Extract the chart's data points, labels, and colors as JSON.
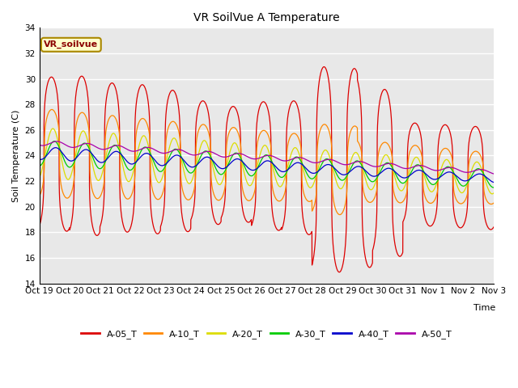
{
  "title": "VR SoilVue A Temperature",
  "xlabel": "Time",
  "ylabel": "Soil Temperature (C)",
  "ylim": [
    14,
    34
  ],
  "yticks": [
    14,
    16,
    18,
    20,
    22,
    24,
    26,
    28,
    30,
    32,
    34
  ],
  "bg_color": "#e8e8e8",
  "series_colors": {
    "A-05_T": "#dd0000",
    "A-10_T": "#ff8800",
    "A-20_T": "#dddd00",
    "A-30_T": "#00cc00",
    "A-40_T": "#0000cc",
    "A-50_T": "#aa00aa"
  },
  "legend_label": "VR_soilvue",
  "xtick_labels": [
    "Oct 19",
    "Oct 20",
    "Oct 21",
    "Oct 22",
    "Oct 23",
    "Oct 24",
    "Oct 25",
    "Oct 26",
    "Oct 27",
    "Oct 28",
    "Oct 29",
    "Oct 30",
    "Oct 31",
    "Nov 1",
    "Nov 2",
    "Nov 3"
  ],
  "n_days": 15,
  "pts_per_day": 288,
  "figsize": [
    6.4,
    4.8
  ],
  "dpi": 100
}
